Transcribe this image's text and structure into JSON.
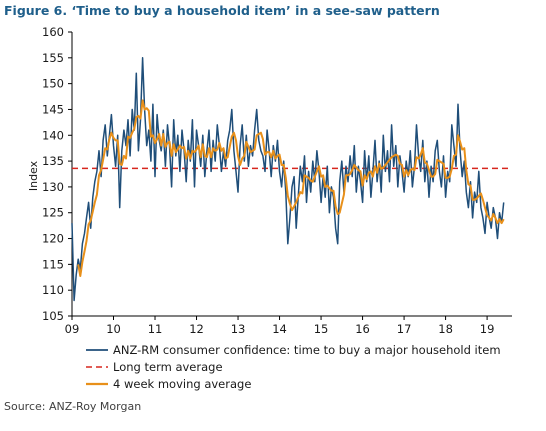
{
  "title": "Figure 6.  ‘Time to buy a household item’  in a see-saw pattern",
  "source": "Source: ANZ-Roy Morgan",
  "colors": {
    "series": "#1f4e79",
    "average": "#d7261e",
    "moving_average": "#e8901a",
    "axis": "#000000"
  },
  "chart_data": {
    "type": "line",
    "title": "Figure 6.  ‘Time to buy a household item’  in a see-saw pattern",
    "xlabel": "",
    "ylabel": "Index",
    "ylim": [
      105,
      160
    ],
    "yticks": [
      105,
      110,
      115,
      120,
      125,
      130,
      135,
      140,
      145,
      150,
      155,
      160
    ],
    "xlim": [
      2009,
      2019.6
    ],
    "xticks": [
      {
        "value": 2009,
        "label": "09"
      },
      {
        "value": 2010,
        "label": "10"
      },
      {
        "value": 2011,
        "label": "11"
      },
      {
        "value": 2012,
        "label": "12"
      },
      {
        "value": 2013,
        "label": "13"
      },
      {
        "value": 2014,
        "label": "14"
      },
      {
        "value": 2015,
        "label": "15"
      },
      {
        "value": 2016,
        "label": "16"
      },
      {
        "value": 2017,
        "label": "17"
      },
      {
        "value": 2018,
        "label": "18"
      },
      {
        "value": 2019,
        "label": "19"
      }
    ],
    "grid": false,
    "legend_position": "bottom",
    "series": [
      {
        "name": "ANZ-RM consumer confidence: time to buy a major household item",
        "x": [
          2009.0,
          2009.05,
          2009.1,
          2009.15,
          2009.2,
          2009.25,
          2009.3,
          2009.35,
          2009.4,
          2009.45,
          2009.5,
          2009.55,
          2009.6,
          2009.65,
          2009.7,
          2009.75,
          2009.8,
          2009.85,
          2009.9,
          2009.95,
          2010.0,
          2010.05,
          2010.1,
          2010.15,
          2010.2,
          2010.25,
          2010.3,
          2010.35,
          2010.4,
          2010.45,
          2010.5,
          2010.55,
          2010.6,
          2010.65,
          2010.7,
          2010.75,
          2010.8,
          2010.85,
          2010.9,
          2010.95,
          2011.0,
          2011.05,
          2011.1,
          2011.15,
          2011.2,
          2011.25,
          2011.3,
          2011.35,
          2011.4,
          2011.45,
          2011.5,
          2011.55,
          2011.6,
          2011.65,
          2011.7,
          2011.75,
          2011.8,
          2011.85,
          2011.9,
          2011.95,
          2012.0,
          2012.05,
          2012.1,
          2012.15,
          2012.2,
          2012.25,
          2012.3,
          2012.35,
          2012.4,
          2012.45,
          2012.5,
          2012.55,
          2012.6,
          2012.65,
          2012.7,
          2012.75,
          2012.8,
          2012.85,
          2012.9,
          2012.95,
          2013.0,
          2013.05,
          2013.1,
          2013.15,
          2013.2,
          2013.25,
          2013.3,
          2013.35,
          2013.4,
          2013.45,
          2013.5,
          2013.55,
          2013.6,
          2013.65,
          2013.7,
          2013.75,
          2013.8,
          2013.85,
          2013.9,
          2013.95,
          2014.0,
          2014.05,
          2014.1,
          2014.15,
          2014.2,
          2014.25,
          2014.3,
          2014.35,
          2014.4,
          2014.45,
          2014.5,
          2014.55,
          2014.6,
          2014.65,
          2014.7,
          2014.75,
          2014.8,
          2014.85,
          2014.9,
          2014.95,
          2015.0,
          2015.05,
          2015.1,
          2015.15,
          2015.2,
          2015.25,
          2015.3,
          2015.35,
          2015.4,
          2015.45,
          2015.5,
          2015.55,
          2015.6,
          2015.65,
          2015.7,
          2015.75,
          2015.8,
          2015.85,
          2015.9,
          2015.95,
          2016.0,
          2016.05,
          2016.1,
          2016.15,
          2016.2,
          2016.25,
          2016.3,
          2016.35,
          2016.4,
          2016.45,
          2016.5,
          2016.55,
          2016.6,
          2016.65,
          2016.7,
          2016.75,
          2016.8,
          2016.85,
          2016.9,
          2016.95,
          2017.0,
          2017.05,
          2017.1,
          2017.15,
          2017.2,
          2017.25,
          2017.3,
          2017.35,
          2017.4,
          2017.45,
          2017.5,
          2017.55,
          2017.6,
          2017.65,
          2017.7,
          2017.75,
          2017.8,
          2017.85,
          2017.9,
          2017.95,
          2018.0,
          2018.05,
          2018.1,
          2018.15,
          2018.2,
          2018.25,
          2018.3,
          2018.35,
          2018.4,
          2018.45,
          2018.5,
          2018.55,
          2018.6,
          2018.65,
          2018.7,
          2018.75,
          2018.8,
          2018.85,
          2018.9,
          2018.95,
          2019.0,
          2019.05,
          2019.1,
          2019.15,
          2019.2,
          2019.25,
          2019.3,
          2019.35,
          2019.4
        ],
        "values": [
          123,
          108,
          113,
          116,
          114,
          119,
          121,
          124,
          127,
          122,
          128,
          131,
          133,
          137,
          132,
          139,
          142,
          136,
          140,
          144,
          138,
          134,
          140,
          126,
          137,
          141,
          138,
          143,
          136,
          145,
          141,
          152,
          137,
          143,
          155,
          145,
          138,
          141,
          135,
          146,
          132,
          144,
          139,
          137,
          141,
          134,
          142,
          138,
          130,
          143,
          136,
          140,
          133,
          141,
          137,
          131,
          139,
          135,
          143,
          130,
          141,
          138,
          134,
          140,
          132,
          137,
          141,
          133,
          139,
          135,
          142,
          138,
          133,
          137,
          134,
          139,
          141,
          145,
          137,
          133,
          129,
          138,
          142,
          135,
          140,
          134,
          138,
          136,
          141,
          145,
          139,
          137,
          136,
          133,
          141,
          137,
          132,
          138,
          135,
          139,
          133,
          130,
          135,
          129,
          119,
          124,
          130,
          132,
          122,
          128,
          134,
          131,
          136,
          127,
          133,
          129,
          135,
          131,
          137,
          133,
          127,
          132,
          128,
          134,
          125,
          130,
          128,
          122,
          119,
          131,
          135,
          129,
          134,
          131,
          136,
          132,
          138,
          129,
          134,
          131,
          127,
          137,
          131,
          136,
          128,
          133,
          139,
          131,
          135,
          129,
          140,
          133,
          137,
          131,
          142,
          134,
          138,
          130,
          136,
          133,
          129,
          135,
          132,
          137,
          130,
          134,
          142,
          136,
          133,
          139,
          131,
          135,
          128,
          134,
          131,
          137,
          139,
          133,
          130,
          136,
          128,
          133,
          131,
          142,
          138,
          134,
          146,
          137,
          132,
          135,
          129,
          126,
          131,
          124,
          129,
          127,
          133,
          126,
          124,
          121,
          127,
          124,
          122,
          126,
          124,
          120,
          125,
          123,
          127
        ]
      },
      {
        "name": "Long term average",
        "value": 133.6
      },
      {
        "name": "4 week moving average",
        "smoothing_window": 4
      }
    ]
  }
}
